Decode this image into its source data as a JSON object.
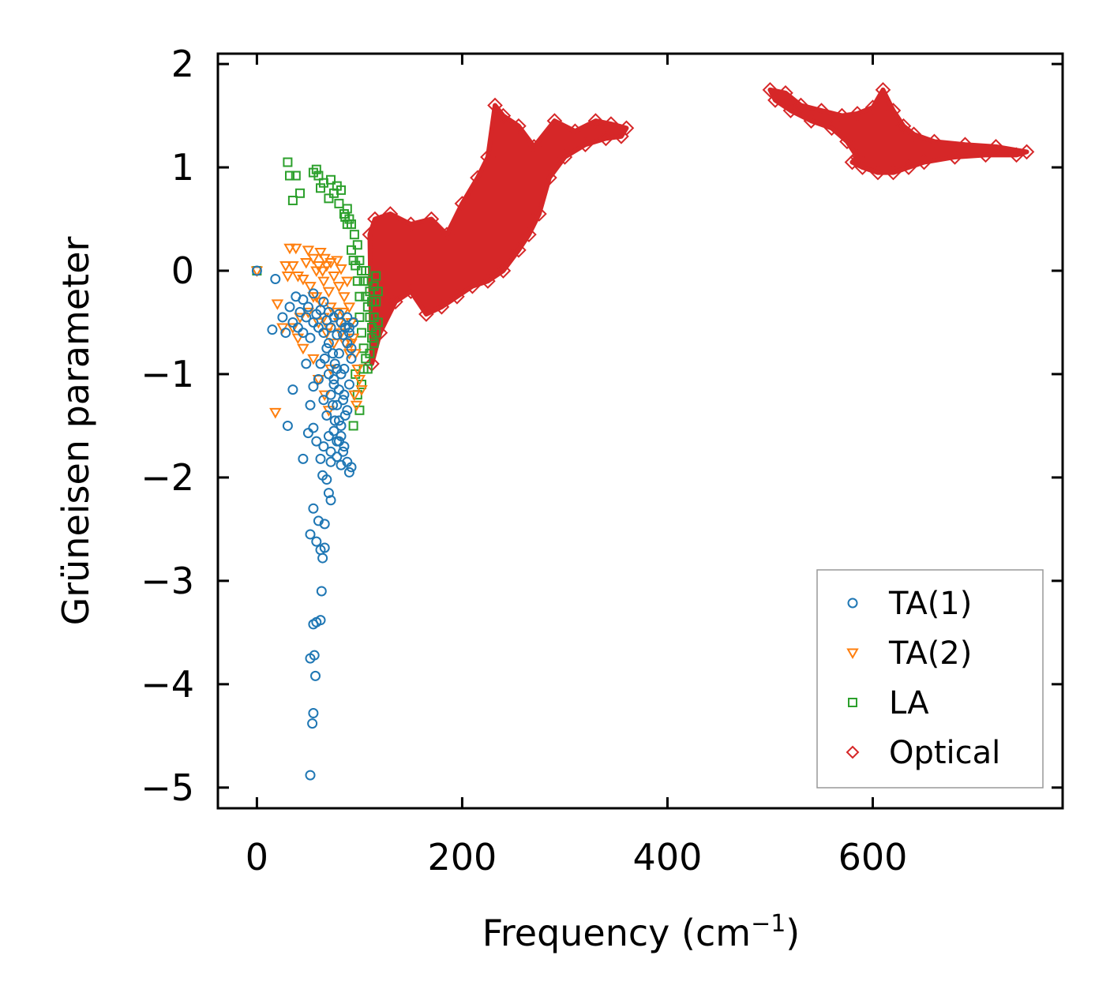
{
  "chart_data": {
    "type": "scatter",
    "title": "",
    "xlabel": "Frequency (cm",
    "xlabel_sup": "−1",
    "xlabel_end": ")",
    "ylabel": "Grüneisen parameter",
    "xlim": [
      -38,
      785
    ],
    "ylim": [
      -5.2,
      2.1
    ],
    "x_ticks": [
      0,
      200,
      400,
      600
    ],
    "x_tick_labels": [
      "0",
      "200",
      "400",
      "600"
    ],
    "y_ticks": [
      2,
      1,
      0,
      -1,
      -2,
      -3,
      -4,
      -5
    ],
    "y_tick_labels": [
      "2",
      "1",
      "0",
      "−1",
      "−2",
      "−3",
      "−4",
      "−5"
    ],
    "legend_position": "lower-right",
    "series": [
      {
        "name": "TA(1)",
        "marker": "circle",
        "color": "#1f77b4",
        "points": [
          [
            0,
            0
          ],
          [
            18,
            -0.08
          ],
          [
            15,
            -0.57
          ],
          [
            25,
            -0.45
          ],
          [
            28,
            -0.6
          ],
          [
            32,
            -0.35
          ],
          [
            35,
            -0.5
          ],
          [
            38,
            -0.25
          ],
          [
            40,
            -0.55
          ],
          [
            42,
            -0.4
          ],
          [
            45,
            -0.6
          ],
          [
            48,
            -0.45
          ],
          [
            50,
            -0.35
          ],
          [
            52,
            -0.65
          ],
          [
            55,
            -0.5
          ],
          [
            58,
            -0.42
          ],
          [
            60,
            -0.55
          ],
          [
            62,
            -0.38
          ],
          [
            65,
            -0.6
          ],
          [
            68,
            -0.48
          ],
          [
            70,
            -0.7
          ],
          [
            72,
            -0.55
          ],
          [
            75,
            -0.45
          ],
          [
            78,
            -0.62
          ],
          [
            80,
            -0.8
          ],
          [
            82,
            -0.5
          ],
          [
            85,
            -0.95
          ],
          [
            88,
            -0.7
          ],
          [
            90,
            -0.55
          ],
          [
            92,
            -0.85
          ],
          [
            45,
            -0.28
          ],
          [
            55,
            -0.22
          ],
          [
            65,
            -0.3
          ],
          [
            70,
            -0.4
          ],
          [
            80,
            -0.42
          ],
          [
            35,
            -1.15
          ],
          [
            30,
            -1.5
          ],
          [
            48,
            -0.9
          ],
          [
            52,
            -1.3
          ],
          [
            55,
            -1.12
          ],
          [
            60,
            -1.05
          ],
          [
            62,
            -0.9
          ],
          [
            65,
            -1.25
          ],
          [
            68,
            -1.4
          ],
          [
            72,
            -1.2
          ],
          [
            75,
            -1.1
          ],
          [
            78,
            -1.3
          ],
          [
            80,
            -1.45
          ],
          [
            82,
            -1.0
          ],
          [
            85,
            -1.2
          ],
          [
            88,
            -1.35
          ],
          [
            90,
            -1.1
          ],
          [
            45,
            -1.82
          ],
          [
            50,
            -1.57
          ],
          [
            55,
            -1.52
          ],
          [
            58,
            -1.65
          ],
          [
            62,
            -1.82
          ],
          [
            65,
            -1.7
          ],
          [
            70,
            -1.6
          ],
          [
            72,
            -1.75
          ],
          [
            75,
            -1.55
          ],
          [
            78,
            -1.8
          ],
          [
            80,
            -1.65
          ],
          [
            82,
            -1.5
          ],
          [
            85,
            -1.7
          ],
          [
            88,
            -1.85
          ],
          [
            90,
            -1.95
          ],
          [
            92,
            -1.9
          ],
          [
            72,
            -1.85
          ],
          [
            82,
            -1.88
          ],
          [
            64,
            -1.98
          ],
          [
            68,
            -2.02
          ],
          [
            70,
            -2.15
          ],
          [
            72,
            -2.22
          ],
          [
            55,
            -2.3
          ],
          [
            60,
            -2.42
          ],
          [
            66,
            -2.45
          ],
          [
            52,
            -2.55
          ],
          [
            58,
            -2.62
          ],
          [
            62,
            -2.7
          ],
          [
            66,
            -2.68
          ],
          [
            64,
            -2.78
          ],
          [
            63,
            -3.1
          ],
          [
            55,
            -3.42
          ],
          [
            58,
            -3.4
          ],
          [
            62,
            -3.38
          ],
          [
            52,
            -3.75
          ],
          [
            56,
            -3.72
          ],
          [
            57,
            -3.92
          ],
          [
            55,
            -4.28
          ],
          [
            54,
            -4.38
          ],
          [
            52,
            -4.88
          ],
          [
            75,
            -1.05
          ],
          [
            78,
            -0.95
          ],
          [
            80,
            -1.15
          ],
          [
            84,
            -1.25
          ],
          [
            86,
            -1.4
          ],
          [
            74,
            -0.8
          ],
          [
            76,
            -0.9
          ],
          [
            82,
            -1.6
          ],
          [
            84,
            -1.75
          ],
          [
            78,
            -1.65
          ],
          [
            76,
            -1.45
          ],
          [
            74,
            -1.3
          ],
          [
            70,
            -1.0
          ],
          [
            68,
            -0.75
          ],
          [
            66,
            -0.85
          ],
          [
            88,
            -0.45
          ],
          [
            90,
            -0.6
          ],
          [
            92,
            -0.75
          ],
          [
            94,
            -0.5
          ],
          [
            86,
            -0.55
          ],
          [
            84,
            -0.62
          ]
        ]
      },
      {
        "name": "TA(2)",
        "marker": "triangle-down",
        "color": "#ff7f0e",
        "points": [
          [
            0,
            0
          ],
          [
            18,
            -1.37
          ],
          [
            20,
            -0.32
          ],
          [
            25,
            -0.55
          ],
          [
            28,
            0.05
          ],
          [
            30,
            -0.05
          ],
          [
            32,
            0.22
          ],
          [
            35,
            0.05
          ],
          [
            38,
            0.22
          ],
          [
            40,
            -0.05
          ],
          [
            42,
            -0.45
          ],
          [
            45,
            -0.08
          ],
          [
            48,
            0.08
          ],
          [
            50,
            0.2
          ],
          [
            52,
            -0.15
          ],
          [
            55,
            0.12
          ],
          [
            58,
            -0.25
          ],
          [
            60,
            0.05
          ],
          [
            62,
            0.18
          ],
          [
            65,
            -0.1
          ],
          [
            68,
            0.05
          ],
          [
            70,
            -0.2
          ],
          [
            72,
            0.08
          ],
          [
            75,
            -0.05
          ],
          [
            78,
            0.1
          ],
          [
            80,
            -0.15
          ],
          [
            82,
            0.02
          ],
          [
            85,
            -0.25
          ],
          [
            88,
            -0.1
          ],
          [
            90,
            -0.35
          ],
          [
            92,
            -0.5
          ],
          [
            94,
            -0.65
          ],
          [
            96,
            -0.8
          ],
          [
            98,
            -0.95
          ],
          [
            100,
            -1.05
          ],
          [
            102,
            -1.15
          ],
          [
            35,
            -0.55
          ],
          [
            40,
            -0.65
          ],
          [
            45,
            -0.75
          ],
          [
            50,
            -0.4
          ],
          [
            55,
            -0.85
          ],
          [
            60,
            -0.5
          ],
          [
            62,
            -0.3
          ],
          [
            65,
            -0.45
          ],
          [
            68,
            -0.6
          ],
          [
            70,
            -0.55
          ],
          [
            72,
            -0.35
          ],
          [
            75,
            -0.7
          ],
          [
            78,
            -0.4
          ],
          [
            80,
            -0.5
          ],
          [
            82,
            -0.6
          ],
          [
            84,
            -0.4
          ],
          [
            86,
            -0.7
          ],
          [
            88,
            -0.55
          ],
          [
            90,
            -0.8
          ],
          [
            92,
            -0.7
          ],
          [
            95,
            -1.2
          ],
          [
            97,
            -1.3
          ],
          [
            66,
            -1.2
          ],
          [
            70,
            -1.35
          ],
          [
            72,
            -0.95
          ],
          [
            60,
            -1.05
          ],
          [
            55,
            -0.25
          ],
          [
            58,
            0.0
          ],
          [
            64,
            0.0
          ],
          [
            66,
            0.12
          ]
        ]
      },
      {
        "name": "LA",
        "marker": "square",
        "color": "#2ca02c",
        "points": [
          [
            0,
            0
          ],
          [
            30,
            1.05
          ],
          [
            32,
            0.92
          ],
          [
            38,
            0.92
          ],
          [
            42,
            0.75
          ],
          [
            35,
            0.68
          ],
          [
            55,
            0.95
          ],
          [
            58,
            0.98
          ],
          [
            60,
            0.92
          ],
          [
            62,
            0.8
          ],
          [
            65,
            0.85
          ],
          [
            70,
            0.7
          ],
          [
            72,
            0.88
          ],
          [
            75,
            0.75
          ],
          [
            78,
            0.82
          ],
          [
            80,
            0.65
          ],
          [
            82,
            0.78
          ],
          [
            85,
            0.55
          ],
          [
            88,
            0.6
          ],
          [
            90,
            0.5
          ],
          [
            92,
            0.45
          ],
          [
            95,
            0.35
          ],
          [
            98,
            0.25
          ],
          [
            100,
            0.1
          ],
          [
            102,
            0.0
          ],
          [
            104,
            -0.1
          ],
          [
            106,
            -0.25
          ],
          [
            108,
            -0.35
          ],
          [
            110,
            -0.45
          ],
          [
            112,
            -0.55
          ],
          [
            114,
            -0.7
          ],
          [
            116,
            -0.6
          ],
          [
            118,
            -0.5
          ],
          [
            100,
            -0.45
          ],
          [
            102,
            -0.6
          ],
          [
            104,
            -0.75
          ],
          [
            106,
            -0.85
          ],
          [
            108,
            -0.95
          ],
          [
            110,
            -0.8
          ],
          [
            112,
            -0.65
          ],
          [
            114,
            -0.45
          ],
          [
            116,
            -0.3
          ],
          [
            118,
            -0.2
          ],
          [
            96,
            -1.0
          ],
          [
            98,
            -1.2
          ],
          [
            100,
            -1.35
          ],
          [
            102,
            -1.1
          ],
          [
            104,
            -0.95
          ],
          [
            94,
            -1.5
          ],
          [
            96,
            0.05
          ],
          [
            98,
            -0.1
          ],
          [
            100,
            -0.25
          ],
          [
            106,
            0.0
          ],
          [
            108,
            -0.1
          ],
          [
            110,
            -0.2
          ],
          [
            112,
            -0.3
          ],
          [
            114,
            -0.15
          ],
          [
            116,
            -0.05
          ],
          [
            92,
            0.2
          ],
          [
            94,
            0.1
          ],
          [
            88,
            0.45
          ],
          [
            86,
            0.52
          ]
        ]
      },
      {
        "name": "Optical",
        "marker": "diamond",
        "color": "#d62728",
        "points": [],
        "regions": [
          {
            "x": [
              110,
              115,
              130,
              150,
              170,
              185,
              200,
              215,
              225,
              232,
              240,
              255,
              270,
              290,
              310,
              330,
              345,
              360,
              355,
              340,
              320,
              300,
              285,
              275,
              265,
              255,
              240,
              225,
              210,
              195,
              180,
              165,
              150,
              135,
              120,
              112
            ],
            "y": [
              0.35,
              0.5,
              0.55,
              0.45,
              0.5,
              0.35,
              0.65,
              0.9,
              1.1,
              1.6,
              1.5,
              1.4,
              1.2,
              1.45,
              1.35,
              1.45,
              1.42,
              1.38,
              1.3,
              1.28,
              1.22,
              1.1,
              0.9,
              0.55,
              0.35,
              0.2,
              0.0,
              -0.1,
              -0.15,
              -0.25,
              -0.35,
              -0.42,
              -0.2,
              -0.3,
              -0.6,
              -0.9
            ]
          },
          {
            "x": [
              500,
              515,
              530,
              550,
              570,
              585,
              600,
              610,
              620,
              630,
              640,
              660,
              690,
              720,
              750,
              740,
              710,
              680,
              650,
              635,
              620,
              605,
              590,
              580,
              585,
              575,
              560,
              540,
              520,
              505
            ],
            "y": [
              1.75,
              1.72,
              1.6,
              1.55,
              1.5,
              1.52,
              1.58,
              1.75,
              1.55,
              1.4,
              1.32,
              1.25,
              1.22,
              1.2,
              1.15,
              1.12,
              1.12,
              1.1,
              1.05,
              1.0,
              0.95,
              0.95,
              1.0,
              1.05,
              1.1,
              1.25,
              1.38,
              1.45,
              1.55,
              1.65
            ]
          }
        ]
      }
    ]
  },
  "page": {
    "bg": "#ffffff"
  }
}
